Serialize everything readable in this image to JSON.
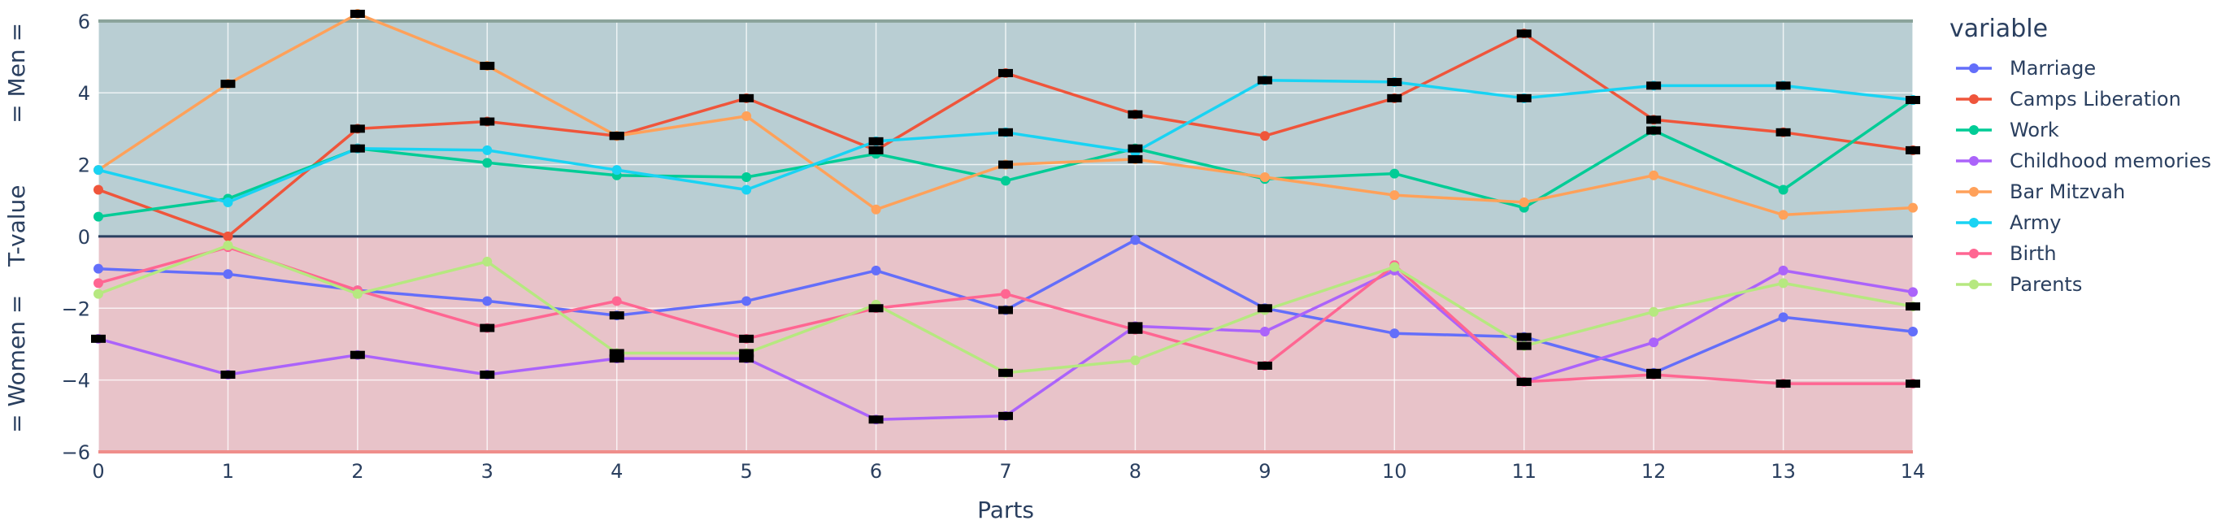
{
  "chart_data": {
    "type": "line",
    "xlabel": "Parts",
    "ylabel_parts": [
      "= Women =",
      "T-value",
      "= Men ="
    ],
    "xlim": [
      0,
      14
    ],
    "ylim": [
      -6.0,
      6.2
    ],
    "x_ticks": [
      0,
      1,
      2,
      3,
      4,
      5,
      6,
      7,
      8,
      9,
      10,
      11,
      12,
      13,
      14
    ],
    "y_ticks": [
      -6,
      -4,
      -2,
      0,
      2,
      4,
      6
    ],
    "y_tick_labels": [
      "−6",
      "−4",
      "−2",
      "0",
      "2",
      "4",
      "6"
    ],
    "grid": true,
    "legend_title": "variable",
    "legend_position": "right",
    "bands": [
      {
        "name": "men",
        "from": 0,
        "to": 6,
        "color": "#b9ced3",
        "edge_color": "#8aa39a"
      },
      {
        "name": "women",
        "from": -6,
        "to": 0,
        "color": "#e8c3c9",
        "edge_color": "#ef8e8b"
      }
    ],
    "zero_line_color": "#2a3f5f",
    "x": [
      0,
      1,
      2,
      3,
      4,
      5,
      6,
      7,
      8,
      9,
      10,
      11,
      12,
      13,
      14
    ],
    "series": [
      {
        "name": "Marriage",
        "color": "#636efa",
        "values": [
          -0.9,
          -1.05,
          -1.5,
          -1.8,
          -2.2,
          -1.8,
          -0.95,
          -2.05,
          -0.1,
          -2.0,
          -2.7,
          -2.8,
          -3.8,
          -2.25,
          -2.65
        ],
        "marker_x": [
          4,
          7,
          9,
          11,
          12
        ]
      },
      {
        "name": "Camps Liberation",
        "color": "#ef553b",
        "values": [
          1.3,
          0.0,
          3.0,
          3.2,
          2.8,
          3.85,
          2.4,
          4.55,
          3.4,
          2.8,
          3.85,
          5.65,
          3.25,
          2.9,
          2.4
        ],
        "marker_x": [
          2,
          3,
          4,
          5,
          6,
          7,
          8,
          10,
          11,
          12,
          13,
          14
        ]
      },
      {
        "name": "Work",
        "color": "#00cc96",
        "values": [
          0.55,
          1.05,
          2.45,
          2.05,
          1.7,
          1.65,
          2.3,
          1.55,
          2.45,
          1.6,
          1.75,
          0.8,
          2.95,
          1.3,
          3.8
        ],
        "marker_x": [
          2,
          8,
          12,
          14
        ]
      },
      {
        "name": "Childhood memories",
        "color": "#ab63fa",
        "values": [
          -2.85,
          -3.85,
          -3.3,
          -3.85,
          -3.4,
          -3.4,
          -5.1,
          -5.0,
          -2.5,
          -2.65,
          -0.95,
          -4.05,
          -2.95,
          -0.95,
          -1.55
        ],
        "marker_x": [
          0,
          1,
          2,
          3,
          4,
          5,
          6,
          7,
          8,
          11
        ]
      },
      {
        "name": "Bar Mitzvah",
        "color": "#ffa15a",
        "values": [
          1.85,
          4.25,
          6.2,
          4.75,
          2.8,
          3.35,
          0.75,
          2.0,
          2.15,
          1.65,
          1.15,
          0.95,
          1.7,
          0.6,
          0.8
        ],
        "marker_x": [
          1,
          2,
          3,
          4,
          7,
          8
        ]
      },
      {
        "name": "Army",
        "color": "#19d3f3",
        "values": [
          1.85,
          0.95,
          2.45,
          2.4,
          1.85,
          1.3,
          2.65,
          2.9,
          2.35,
          4.35,
          4.3,
          3.85,
          4.2,
          4.2,
          3.8
        ],
        "marker_x": [
          6,
          7,
          9,
          10,
          11,
          12,
          13,
          14
        ]
      },
      {
        "name": "Birth",
        "color": "#ff6692",
        "values": [
          -1.3,
          -0.3,
          -1.5,
          -2.55,
          -1.8,
          -2.85,
          -2.0,
          -1.6,
          -2.6,
          -3.6,
          -0.8,
          -4.05,
          -3.85,
          -4.1,
          -4.1
        ],
        "marker_x": [
          3,
          5,
          6,
          8,
          9,
          11,
          12,
          13,
          14
        ]
      },
      {
        "name": "Parents",
        "color": "#b6e880",
        "values": [
          -1.6,
          -0.25,
          -1.6,
          -0.7,
          -3.25,
          -3.25,
          -1.9,
          -3.8,
          -3.45,
          -2.05,
          -0.85,
          -3.05,
          -2.1,
          -1.3,
          -1.95
        ],
        "marker_x": [
          4,
          5,
          7,
          11,
          14
        ]
      }
    ]
  }
}
